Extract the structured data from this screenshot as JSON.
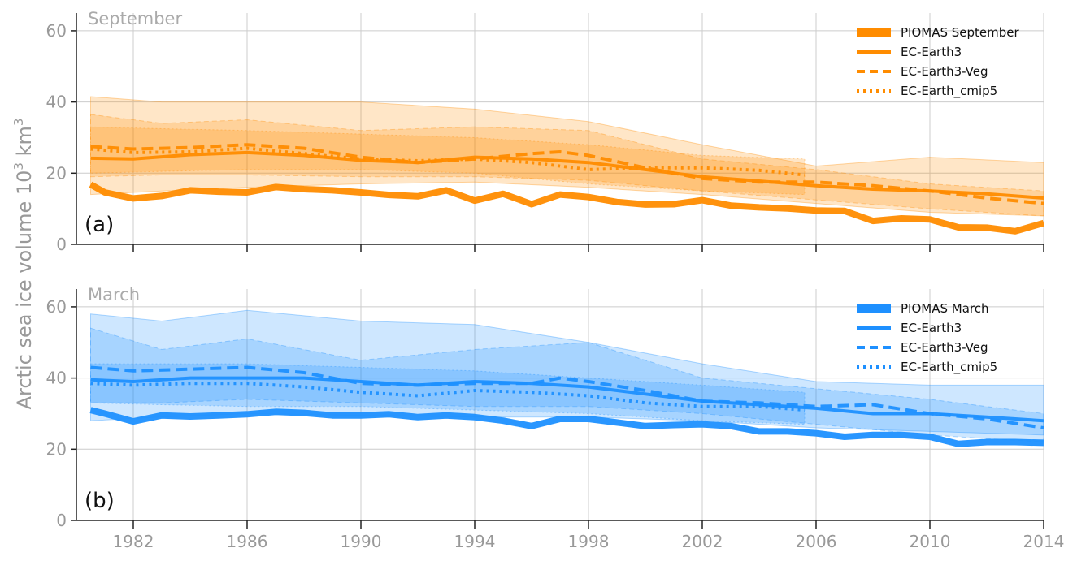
{
  "figure": {
    "ylabel": "Arctic sea ice volume 10",
    "ylabel_sup": "3",
    "ylabel_unit": " km",
    "ylabel_unit_sup": "3"
  },
  "chart_data": [
    {
      "type": "line",
      "panel_letter": "(a)",
      "title": "September",
      "color": "#ff8c00",
      "xlim": [
        1980,
        2014
      ],
      "ylim": [
        0,
        65
      ],
      "yticks": [
        0,
        20,
        40,
        60
      ],
      "xticks": [
        1982,
        1986,
        1990,
        1994,
        1998,
        2002,
        2006,
        2010,
        2014
      ],
      "show_xtick_labels": false,
      "grid": true,
      "legend_position": "top-right",
      "series": [
        {
          "name": "PIOMAS September",
          "style": "thick",
          "x": [
            1980.5,
            1981,
            1982,
            1983,
            1984,
            1985,
            1986,
            1987,
            1988,
            1989,
            1990,
            1991,
            1992,
            1993,
            1994,
            1995,
            1996,
            1997,
            1998,
            1999,
            2000,
            2001,
            2002,
            2003,
            2004,
            2005,
            2006,
            2007,
            2008,
            2009,
            2010,
            2011,
            2012,
            2013,
            2014
          ],
          "values": [
            16.8,
            14.6,
            12.9,
            13.6,
            15.2,
            14.8,
            14.6,
            16.1,
            15.5,
            15.2,
            14.6,
            13.9,
            13.5,
            15.2,
            12.3,
            14.2,
            11.3,
            14.0,
            13.3,
            11.9,
            11.2,
            11.3,
            12.4,
            10.9,
            10.4,
            10.1,
            9.5,
            9.4,
            6.6,
            7.3,
            7.0,
            4.8,
            4.7,
            3.7,
            6.0
          ]
        },
        {
          "name": "EC-Earth3",
          "style": "solid",
          "x": [
            1980.5,
            1982,
            1984,
            1986,
            1988,
            1990,
            1992,
            1994,
            1996,
            1998,
            2000,
            2002,
            2004,
            2006,
            2008,
            2010,
            2012,
            2014
          ],
          "values": [
            24.2,
            24.0,
            25.2,
            25.8,
            25.0,
            23.6,
            23.0,
            24.5,
            24.0,
            23.0,
            21.0,
            19.0,
            17.8,
            16.5,
            15.5,
            15.0,
            14.2,
            13.0
          ],
          "band": {
            "x": [
              1980.5,
              1983,
              1986,
              1990,
              1994,
              1998,
              2002,
              2006,
              2010,
              2014
            ],
            "lower": [
              14.0,
              15.0,
              16.0,
              17.0,
              17.5,
              16.0,
              14.0,
              11.5,
              9.0,
              8.0
            ],
            "upper": [
              41.5,
              40.0,
              40.0,
              40.0,
              38.0,
              34.5,
              28.0,
              22.0,
              24.5,
              23.0
            ]
          }
        },
        {
          "name": "EC-Earth3-Veg",
          "style": "dashed",
          "x": [
            1980.5,
            1982,
            1984,
            1986,
            1988,
            1990,
            1992,
            1994,
            1996,
            1997,
            1998,
            2000,
            2002,
            2004,
            2006,
            2008,
            2010,
            2012,
            2014
          ],
          "values": [
            27.5,
            26.8,
            27.2,
            28.0,
            27.0,
            24.5,
            23.0,
            24.0,
            25.5,
            26.0,
            25.0,
            21.5,
            18.5,
            17.5,
            17.5,
            16.5,
            15.0,
            13.0,
            11.5
          ],
          "band": {
            "x": [
              1980.5,
              1983,
              1986,
              1990,
              1994,
              1998,
              2002,
              2006,
              2010,
              2014
            ],
            "lower": [
              19.0,
              19.5,
              19.5,
              19.0,
              19.0,
              18.0,
              15.0,
              12.5,
              10.0,
              8.0
            ],
            "upper": [
              36.5,
              34.0,
              35.0,
              32.0,
              33.0,
              32.0,
              24.0,
              21.0,
              17.0,
              15.0
            ]
          }
        },
        {
          "name": "EC-Earth_cmip5",
          "style": "dotted",
          "x": [
            1980.5,
            1982,
            1984,
            1986,
            1988,
            1990,
            1992,
            1994,
            1996,
            1998,
            2000,
            2002,
            2004,
            2005.6
          ],
          "values": [
            26.8,
            25.8,
            26.0,
            27.0,
            25.5,
            24.0,
            23.5,
            24.0,
            23.0,
            21.0,
            21.5,
            21.5,
            20.8,
            19.5
          ],
          "band": {
            "x": [
              1980.5,
              1983,
              1986,
              1990,
              1994,
              1998,
              2002,
              2005.6
            ],
            "lower": [
              20.0,
              20.5,
              21.0,
              21.0,
              20.0,
              17.0,
              15.0,
              14.0
            ],
            "upper": [
              33.0,
              32.5,
              32.0,
              31.0,
              30.0,
              28.0,
              25.0,
              24.0
            ]
          }
        }
      ]
    },
    {
      "type": "line",
      "panel_letter": "(b)",
      "title": "March",
      "color": "#1e90ff",
      "xlim": [
        1980,
        2014
      ],
      "ylim": [
        0,
        65
      ],
      "yticks": [
        0,
        20,
        40,
        60
      ],
      "xticks": [
        1982,
        1986,
        1990,
        1994,
        1998,
        2002,
        2006,
        2010,
        2014
      ],
      "show_xtick_labels": true,
      "grid": true,
      "legend_position": "top-right",
      "series": [
        {
          "name": "PIOMAS March",
          "style": "thick",
          "x": [
            1980.5,
            1981,
            1982,
            1983,
            1984,
            1985,
            1986,
            1987,
            1988,
            1989,
            1990,
            1991,
            1992,
            1993,
            1994,
            1995,
            1996,
            1997,
            1998,
            1999,
            2000,
            2001,
            2002,
            2003,
            2004,
            2005,
            2006,
            2007,
            2008,
            2009,
            2010,
            2011,
            2012,
            2013,
            2014
          ],
          "values": [
            31.0,
            30.0,
            27.8,
            29.5,
            29.2,
            29.5,
            29.8,
            30.5,
            30.2,
            29.5,
            29.5,
            29.8,
            29.0,
            29.5,
            29.0,
            28.0,
            26.5,
            28.5,
            28.5,
            27.5,
            26.5,
            26.8,
            27.0,
            26.5,
            25.0,
            25.0,
            24.5,
            23.5,
            24.0,
            24.0,
            23.5,
            21.5,
            22.0,
            22.0,
            21.8
          ]
        },
        {
          "name": "EC-Earth3",
          "style": "solid",
          "x": [
            1980.5,
            1982,
            1984,
            1986,
            1988,
            1990,
            1992,
            1994,
            1996,
            1998,
            2000,
            2002,
            2004,
            2006,
            2008,
            2010,
            2012,
            2014
          ],
          "values": [
            39.5,
            39.0,
            40.0,
            40.0,
            40.0,
            39.0,
            38.0,
            39.0,
            38.5,
            37.5,
            35.5,
            33.5,
            32.5,
            31.5,
            30.0,
            30.0,
            29.0,
            28.0
          ],
          "band": {
            "x": [
              1980.5,
              1983,
              1986,
              1990,
              1994,
              1998,
              2002,
              2006,
              2010,
              2014
            ],
            "lower": [
              28.0,
              29.0,
              30.0,
              29.5,
              29.0,
              29.0,
              28.0,
              26.0,
              25.0,
              24.0
            ],
            "upper": [
              58.0,
              56.0,
              59.0,
              56.0,
              55.0,
              50.0,
              44.0,
              39.0,
              38.0,
              38.0
            ]
          }
        },
        {
          "name": "EC-Earth3-Veg",
          "style": "dashed",
          "x": [
            1980.5,
            1982,
            1984,
            1986,
            1988,
            1990,
            1992,
            1994,
            1996,
            1997,
            1998,
            2000,
            2002,
            2004,
            2006,
            2008,
            2010,
            2012,
            2014
          ],
          "values": [
            43.0,
            42.0,
            42.5,
            43.0,
            41.5,
            38.5,
            38.0,
            38.5,
            38.5,
            40.0,
            39.0,
            36.5,
            33.5,
            33.0,
            32.0,
            32.5,
            30.0,
            28.5,
            26.0
          ],
          "band": {
            "x": [
              1980.5,
              1983,
              1986,
              1990,
              1994,
              1998,
              2002,
              2006,
              2010,
              2014
            ],
            "lower": [
              33.0,
              33.0,
              34.0,
              33.0,
              32.0,
              32.0,
              30.0,
              27.0,
              24.0,
              22.0
            ],
            "upper": [
              54.0,
              48.0,
              51.0,
              45.0,
              48.0,
              50.0,
              40.0,
              37.0,
              34.0,
              30.0
            ]
          }
        },
        {
          "name": "EC-Earth_cmip5",
          "style": "dotted",
          "x": [
            1980.5,
            1982,
            1984,
            1986,
            1988,
            1990,
            1992,
            1994,
            1996,
            1998,
            2000,
            2002,
            2004,
            2005.6
          ],
          "values": [
            38.5,
            38.0,
            38.5,
            38.5,
            37.5,
            36.0,
            35.0,
            36.5,
            36.0,
            35.0,
            33.0,
            32.0,
            32.0,
            31.0
          ],
          "band": {
            "x": [
              1980.5,
              1983,
              1986,
              1990,
              1994,
              1998,
              2002,
              2005.6
            ],
            "lower": [
              33.0,
              32.5,
              32.0,
              32.0,
              31.0,
              30.0,
              28.0,
              27.0
            ],
            "upper": [
              44.0,
              44.0,
              44.0,
              43.0,
              42.0,
              40.0,
              38.0,
              36.0
            ]
          }
        }
      ]
    }
  ]
}
